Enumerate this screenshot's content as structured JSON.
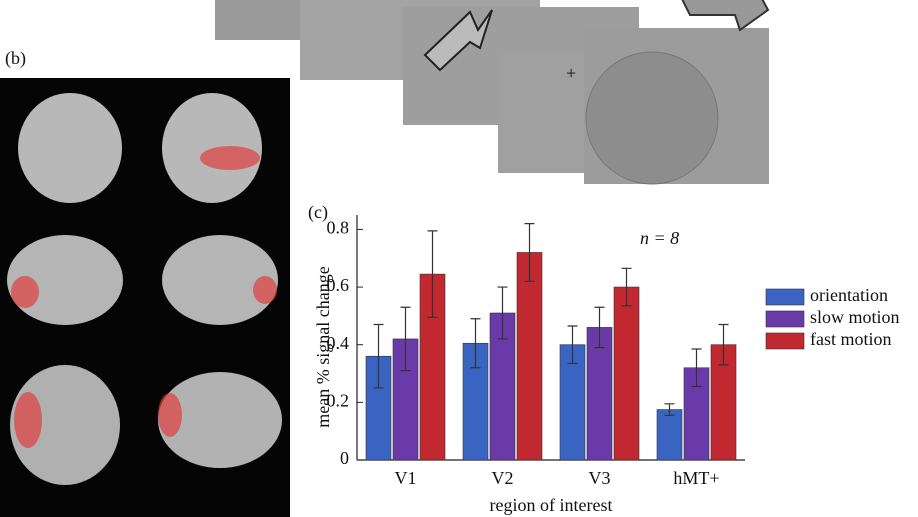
{
  "panel_labels": [
    "(b)",
    "(c)"
  ],
  "chart_data": {
    "type": "bar",
    "xlabel": "region of interest",
    "ylabel": "mean % signal change",
    "annotation": "n = 8",
    "categories": [
      "V1",
      "V2",
      "V3",
      "hMT+"
    ],
    "series": [
      {
        "name": "orientation",
        "color": "#3a64c2",
        "values": [
          0.36,
          0.405,
          0.4,
          0.175
        ],
        "errors": [
          0.11,
          0.085,
          0.065,
          0.02
        ]
      },
      {
        "name": "slow motion",
        "color": "#6b3aa9",
        "values": [
          0.42,
          0.51,
          0.46,
          0.32
        ],
        "errors": [
          0.11,
          0.09,
          0.07,
          0.065
        ]
      },
      {
        "name": "fast motion",
        "color": "#c1282f",
        "values": [
          0.645,
          0.72,
          0.6,
          0.4
        ],
        "errors": [
          0.15,
          0.1,
          0.065,
          0.07
        ]
      }
    ],
    "ylim": [
      0,
      0.85
    ],
    "yticks": [
      0,
      0.2,
      0.4,
      0.6,
      0.8
    ],
    "legend": "right"
  }
}
